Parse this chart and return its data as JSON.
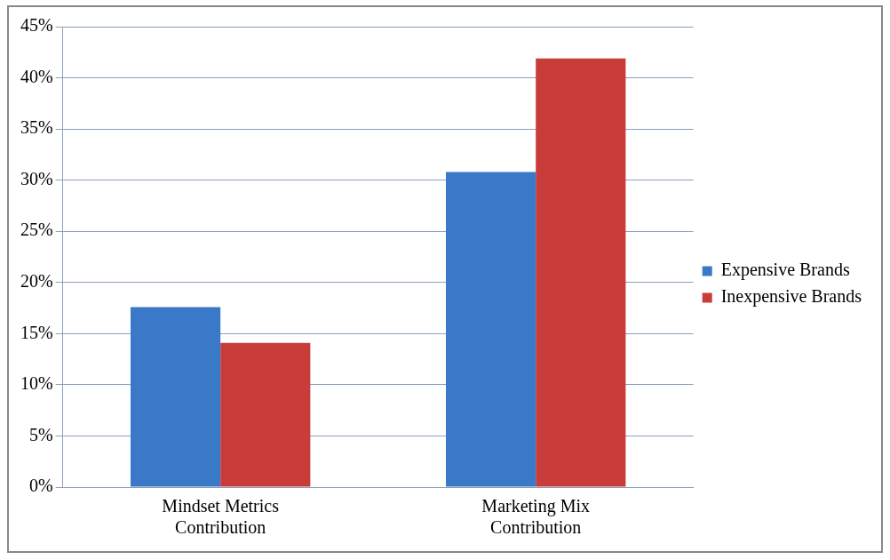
{
  "chart_data": {
    "type": "bar",
    "categories": [
      "Mindset Metrics Contribution",
      "Marketing Mix Contribution"
    ],
    "series": [
      {
        "name": "Expensive Brands",
        "color": "#3a78c8",
        "values": [
          17.6,
          30.8
        ]
      },
      {
        "name": "Inexpensive Brands",
        "color": "#c83c3a",
        "values": [
          14.1,
          41.9
        ]
      }
    ],
    "ylim": [
      0,
      45
    ],
    "yticks": [
      {
        "value": 0,
        "label": "0%"
      },
      {
        "value": 5,
        "label": "5%"
      },
      {
        "value": 10,
        "label": "10%"
      },
      {
        "value": 15,
        "label": "15%"
      },
      {
        "value": 20,
        "label": "20%"
      },
      {
        "value": 25,
        "label": "25%"
      },
      {
        "value": 30,
        "label": "30%"
      },
      {
        "value": 35,
        "label": "35%"
      },
      {
        "value": 40,
        "label": "40%"
      },
      {
        "value": 45,
        "label": "45%"
      }
    ],
    "grid": "y",
    "legend": "right"
  }
}
